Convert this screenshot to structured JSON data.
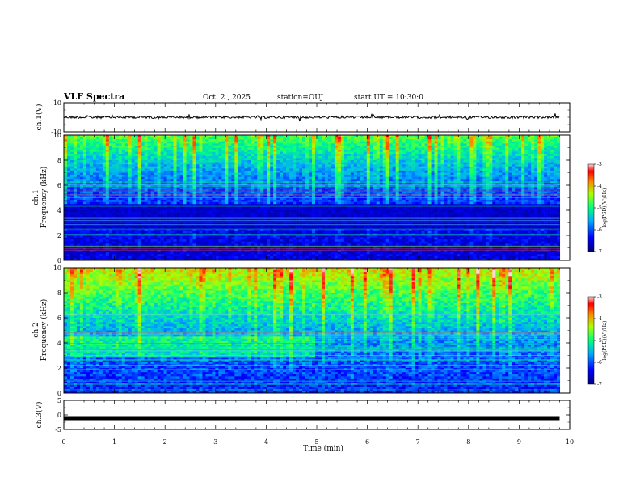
{
  "header": {
    "title": "VLF Spectra",
    "date": "Oct. 2 , 2025",
    "station": "station=OUJ",
    "start": "start UT = 10:30:0"
  },
  "chart_data": [
    {
      "type": "line",
      "name": "ch1-waveform",
      "ylabel": "ch.1(V)",
      "ylim": [
        -10,
        10
      ],
      "yticks": [
        10,
        -10
      ],
      "x_range_min": [
        0,
        9.8
      ],
      "approx_level_v": 0
    },
    {
      "type": "heatmap",
      "name": "ch1-spectrogram",
      "ylabel": "ch.1",
      "ylabel2": "Frequency (kHz)",
      "ylim": [
        0,
        10
      ],
      "yticks": [
        0,
        2,
        4,
        6,
        8,
        10
      ],
      "colorbar": {
        "label": "log(PSD)(V²/Hz)",
        "range": [
          -7,
          -3
        ],
        "ticks": [
          -3,
          -4,
          -5,
          -6,
          -7
        ]
      }
    },
    {
      "type": "heatmap",
      "name": "ch2-spectrogram",
      "ylabel": "ch.2",
      "ylabel2": "Frequency (kHz)",
      "ylim": [
        0,
        10
      ],
      "yticks": [
        0,
        2,
        4,
        6,
        8,
        10
      ],
      "colorbar": {
        "label": "log(PSD)(V²/Hz)",
        "range": [
          -7,
          -3
        ],
        "ticks": [
          -3,
          -4,
          -5,
          -6,
          -7
        ]
      }
    },
    {
      "type": "line",
      "name": "ch3-waveform",
      "ylabel": "ch.3(V)",
      "ylim": [
        -5,
        5
      ],
      "yticks": [
        5,
        0,
        -5
      ],
      "approx_level_v": -1.1
    }
  ],
  "xaxis": {
    "label": "Time (min)",
    "range": [
      0,
      10
    ],
    "ticks": [
      0,
      1,
      2,
      3,
      4,
      5,
      6,
      7,
      8,
      9,
      10
    ]
  }
}
